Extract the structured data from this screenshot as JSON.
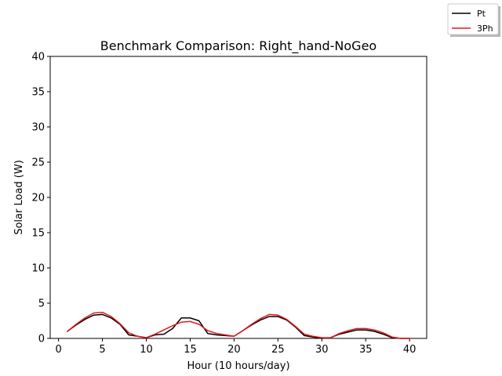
{
  "chart_data": {
    "type": "line",
    "title": "Benchmark Comparison: Right_hand-NoGeo",
    "xlabel": "Hour (10 hours/day)",
    "ylabel": "Solar Load (W)",
    "xlim": [
      -0.95,
      41.95
    ],
    "ylim": [
      0,
      40
    ],
    "xticks": [
      0,
      5,
      10,
      15,
      20,
      25,
      30,
      35,
      40
    ],
    "yticks": [
      0,
      5,
      10,
      15,
      20,
      25,
      30,
      35,
      40
    ],
    "grid": false,
    "legend_position": "top-right",
    "x": [
      1,
      2,
      3,
      4,
      5,
      6,
      7,
      8,
      9,
      10,
      11,
      12,
      13,
      14,
      15,
      16,
      17,
      18,
      19,
      20,
      21,
      22,
      23,
      24,
      25,
      26,
      27,
      28,
      29,
      30,
      31,
      32,
      33,
      34,
      35,
      36,
      37,
      38,
      39,
      40
    ],
    "series": [
      {
        "name": "Pt",
        "color": "#000000",
        "values": [
          1.0,
          1.9,
          2.7,
          3.3,
          3.4,
          2.9,
          2.0,
          0.5,
          0.3,
          0.1,
          0.5,
          0.6,
          1.4,
          2.9,
          2.9,
          2.5,
          0.7,
          0.5,
          0.4,
          0.3,
          1.1,
          1.9,
          2.6,
          3.1,
          3.1,
          2.6,
          1.6,
          0.4,
          0.2,
          0.0,
          0.1,
          0.6,
          0.9,
          1.2,
          1.2,
          1.0,
          0.6,
          0.1,
          0.0,
          0.0
        ]
      },
      {
        "name": "3Ph",
        "color": "#e41a1c",
        "values": [
          1.0,
          2.0,
          2.9,
          3.6,
          3.7,
          3.1,
          2.1,
          0.8,
          0.3,
          0.1,
          0.6,
          1.2,
          1.8,
          2.3,
          2.4,
          2.0,
          1.1,
          0.7,
          0.5,
          0.3,
          1.1,
          2.0,
          2.8,
          3.4,
          3.3,
          2.7,
          1.7,
          0.6,
          0.3,
          0.1,
          0.1,
          0.7,
          1.1,
          1.4,
          1.4,
          1.2,
          0.8,
          0.2,
          0.0,
          0.0
        ]
      }
    ]
  }
}
